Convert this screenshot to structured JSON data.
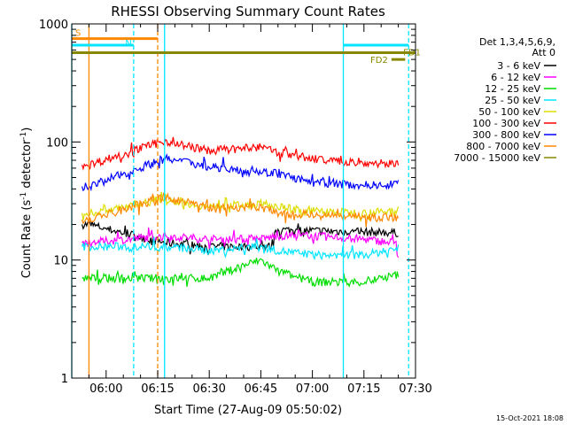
{
  "chart_data": {
    "type": "line",
    "title": "RHESSI Observing Summary Count Rates",
    "xlabel": "Start Time (27-Aug-09 05:50:02)",
    "ylabel_parts": [
      "Count Rate (s",
      "-1",
      " detector",
      "-1",
      ")"
    ],
    "yscale": "log",
    "ylim": [
      1,
      1000
    ],
    "y_ticks": [
      {
        "value": 1,
        "label": "1"
      },
      {
        "value": 10,
        "label": "10"
      },
      {
        "value": 100,
        "label": "100"
      },
      {
        "value": 1000,
        "label": "1000"
      }
    ],
    "xlim": [
      "05:50",
      "07:30"
    ],
    "x_ticks": [
      {
        "time": "06:00",
        "label": "06:00"
      },
      {
        "time": "06:15",
        "label": "06:15"
      },
      {
        "time": "06:30",
        "label": "06:30"
      },
      {
        "time": "06:45",
        "label": "06:45"
      },
      {
        "time": "07:00",
        "label": "07:00"
      },
      {
        "time": "07:15",
        "label": "07:15"
      },
      {
        "time": "07:30",
        "label": "07:30"
      }
    ],
    "legend": {
      "placement": "right",
      "header": [
        "Det 1,3,4,5,6,9,",
        "Att 0"
      ]
    },
    "series": [
      {
        "name": "3 - 6 keV",
        "color": "#000000",
        "points": [
          [
            "05:53",
            20
          ],
          [
            "05:55",
            20
          ],
          [
            "06:17",
            14
          ],
          [
            "06:30",
            13
          ],
          [
            "06:45",
            13
          ],
          [
            "06:48",
            13
          ],
          [
            "06:49",
            16
          ],
          [
            "06:50",
            18
          ],
          [
            "07:25",
            17
          ]
        ]
      },
      {
        "name": "6 - 12 keV",
        "color": "#ff00ff",
        "points": [
          [
            "05:53",
            14
          ],
          [
            "05:55",
            14
          ],
          [
            "06:17",
            16
          ],
          [
            "06:30",
            15
          ],
          [
            "06:45",
            15
          ],
          [
            "06:50",
            16
          ],
          [
            "07:00",
            16
          ],
          [
            "07:15",
            15
          ],
          [
            "07:24",
            14
          ],
          [
            "07:25",
            10
          ]
        ]
      },
      {
        "name": "12 - 25 keV",
        "color": "#00dd00",
        "points": [
          [
            "05:53",
            7
          ],
          [
            "05:55",
            7
          ],
          [
            "06:17",
            7
          ],
          [
            "06:30",
            7
          ],
          [
            "06:40",
            9
          ],
          [
            "06:45",
            10
          ],
          [
            "06:50",
            8
          ],
          [
            "07:00",
            6.5
          ],
          [
            "07:15",
            6.5
          ],
          [
            "07:25",
            7.5
          ]
        ]
      },
      {
        "name": "25 - 50 keV",
        "color": "#00e5ff",
        "points": [
          [
            "05:53",
            13
          ],
          [
            "05:55",
            13
          ],
          [
            "06:17",
            13
          ],
          [
            "06:30",
            12
          ],
          [
            "06:45",
            13
          ],
          [
            "06:50",
            12
          ],
          [
            "07:00",
            11
          ],
          [
            "07:15",
            11
          ],
          [
            "07:25",
            12.5
          ]
        ]
      },
      {
        "name": "50 - 100 keV",
        "color": "#dddd00",
        "points": [
          [
            "05:53",
            25
          ],
          [
            "05:55",
            25
          ],
          [
            "06:17",
            33
          ],
          [
            "06:30",
            28
          ],
          [
            "06:45",
            30
          ],
          [
            "06:50",
            28
          ],
          [
            "07:00",
            26
          ],
          [
            "07:15",
            25
          ],
          [
            "07:25",
            26
          ]
        ]
      },
      {
        "name": "100 - 300 keV",
        "color": "#ff0000",
        "points": [
          [
            "05:53",
            64
          ],
          [
            "05:55",
            64
          ],
          [
            "06:17",
            102
          ],
          [
            "06:30",
            84
          ],
          [
            "06:45",
            90
          ],
          [
            "06:50",
            82
          ],
          [
            "07:00",
            72
          ],
          [
            "07:15",
            66
          ],
          [
            "07:25",
            66
          ]
        ]
      },
      {
        "name": "300 - 800 keV",
        "color": "#0000ff",
        "points": [
          [
            "05:53",
            42
          ],
          [
            "05:55",
            42
          ],
          [
            "06:17",
            72
          ],
          [
            "06:30",
            62
          ],
          [
            "06:45",
            56
          ],
          [
            "06:50",
            54
          ],
          [
            "07:00",
            45
          ],
          [
            "07:15",
            43
          ],
          [
            "07:25",
            44
          ]
        ]
      },
      {
        "name": "800 - 7000 keV",
        "color": "#ff8800",
        "points": [
          [
            "05:53",
            22
          ],
          [
            "05:55",
            22
          ],
          [
            "06:17",
            34
          ],
          [
            "06:30",
            28
          ],
          [
            "06:45",
            28
          ],
          [
            "06:50",
            25
          ],
          [
            "07:00",
            24
          ],
          [
            "07:15",
            23
          ],
          [
            "07:25",
            23
          ]
        ]
      },
      {
        "name": "7000 - 15000 keV",
        "color": "#888800",
        "points": []
      }
    ],
    "flags": [
      {
        "label": "S",
        "color": "#ff8800",
        "start": "05:50",
        "end": "06:15",
        "level": 750
      },
      {
        "label": "N",
        "color": "#00e5ff",
        "start": "05:50",
        "end": "06:08",
        "level": 660
      },
      {
        "label": "FD1",
        "color": "#888800",
        "start": "05:50",
        "end": "07:30",
        "level": 570
      },
      {
        "label": "FD2",
        "color": "#888800",
        "start": "07:23",
        "end": "07:27",
        "level": 500
      },
      {
        "label": "",
        "color": "#00e5ff",
        "start": "07:09",
        "end": "07:28",
        "level": 660
      }
    ],
    "vlines": [
      {
        "time": "05:50",
        "color": "#00e5ff",
        "style": "solid"
      },
      {
        "time": "05:55",
        "color": "#ff8800",
        "style": "solid"
      },
      {
        "time": "06:08",
        "color": "#00e5ff",
        "style": "dashed"
      },
      {
        "time": "06:15",
        "color": "#ff8800",
        "style": "dashed"
      },
      {
        "time": "06:17",
        "color": "#00e5ff",
        "style": "solid"
      },
      {
        "time": "07:09",
        "color": "#00e5ff",
        "style": "solid"
      },
      {
        "time": "07:28",
        "color": "#00e5ff",
        "style": "dashed"
      }
    ]
  },
  "footer": {
    "timestamp": "15-Oct-2021 18:08"
  }
}
